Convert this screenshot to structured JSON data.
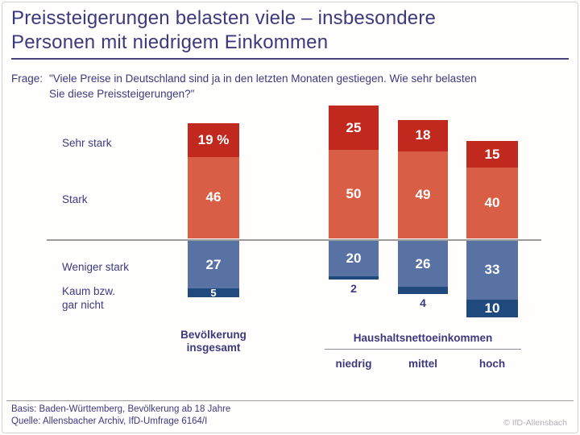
{
  "header": {
    "title_line1": "Preissteigerungen belasten viele – insbesondere",
    "title_line2": "Personen mit niedrigem Einkommen"
  },
  "question": {
    "prefix": "Frage:",
    "line1": "\"Viele Preise in Deutschland sind ja in den letzten Monaten gestiegen. Wie sehr belasten",
    "line2": "Sie diese Preissteigerungen?\""
  },
  "legend": {
    "sehr_stark": "Sehr stark",
    "stark": "Stark",
    "weniger_stark": "Weniger stark",
    "kaum_line1": "Kaum bzw.",
    "kaum_line2": "gar nicht"
  },
  "chart_data": {
    "type": "bar",
    "subtype": "diverging-stacked",
    "unit": "percent",
    "title": "Preissteigerungen belasten viele – insbesondere Personen mit niedrigem Einkommen",
    "categories": [
      "Bevölkerung insgesamt",
      "niedrig",
      "mittel",
      "hoch"
    ],
    "series": [
      {
        "name": "Sehr stark",
        "color": "#c1281e",
        "values": [
          19,
          25,
          18,
          15
        ]
      },
      {
        "name": "Stark",
        "color": "#d85f45",
        "values": [
          46,
          50,
          49,
          40
        ]
      },
      {
        "name": "Weniger stark",
        "color": "#5872a4",
        "values": [
          27,
          20,
          26,
          33
        ]
      },
      {
        "name": "Kaum bzw. gar nicht",
        "color": "#20497e",
        "values": [
          5,
          2,
          4,
          10
        ]
      }
    ],
    "value_labels": [
      [
        "19 %",
        "25",
        "18",
        "15"
      ],
      [
        "46",
        "50",
        "49",
        "40"
      ],
      [
        "27",
        "20",
        "26",
        "33"
      ],
      [
        "5",
        "2",
        "4",
        "10"
      ]
    ],
    "kaum_label_positions": [
      "inside-small",
      "below",
      "below",
      "inside"
    ],
    "layout_note": "Sehr stark + Stark stacked above baseline, Weniger stark + Kaum bzw. gar nicht stacked below baseline"
  },
  "axis": {
    "group1_line1": "Bevölkerung",
    "group1_line2": "insgesamt",
    "income_header": "Haushaltsnettoeinkommen",
    "income_low": "niedrig",
    "income_mid": "mittel",
    "income_high": "hoch"
  },
  "footer": {
    "basis": "Basis: Baden-Württemberg, Bevölkerung ab 18 Jahre",
    "quelle": "Quelle: Allensbacher Archiv, IfD-Umfrage 6164/I",
    "copyright": "© IfD-Allensbach"
  }
}
